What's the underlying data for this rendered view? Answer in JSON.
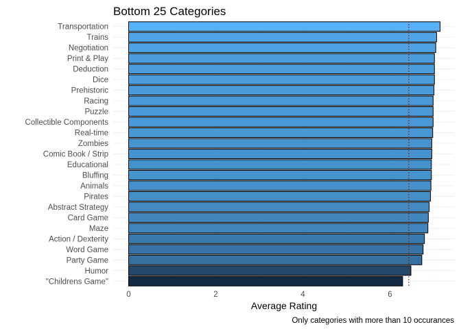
{
  "chart_data": {
    "type": "bar",
    "orientation": "horizontal",
    "title": "Bottom 25 Categories",
    "xlabel": "Average Rating",
    "ylabel": "",
    "caption": "Only categories with more than 10 occurances",
    "xlim": [
      0,
      7.3
    ],
    "x_ticks": [
      0,
      2,
      4,
      6
    ],
    "reference_line": 6.43,
    "grid": true,
    "legend": "none",
    "fill_low": "#132b43",
    "fill_high": "#56b1f7",
    "categories": [
      "Transportation",
      "Trains",
      "Negotiation",
      "Print & Play",
      "Deduction",
      "Dice",
      "Prehistoric",
      "Racing",
      "Puzzle",
      "Collectible Components",
      "Real-time",
      "Zombies",
      "Comic Book / Strip",
      "Educational",
      "Bluffing",
      "Animals",
      "Pirates",
      "Abstract Strategy",
      "Card Game",
      "Maze",
      "Action / Dexterity",
      "Word Game",
      "Party Game",
      "Humor",
      "\"Childrens Game\""
    ],
    "values": [
      7.15,
      7.07,
      7.05,
      7.02,
      7.02,
      7.02,
      7.01,
      6.99,
      6.99,
      6.99,
      6.98,
      6.96,
      6.96,
      6.95,
      6.95,
      6.94,
      6.93,
      6.9,
      6.88,
      6.87,
      6.79,
      6.76,
      6.73,
      6.48,
      6.29
    ]
  }
}
